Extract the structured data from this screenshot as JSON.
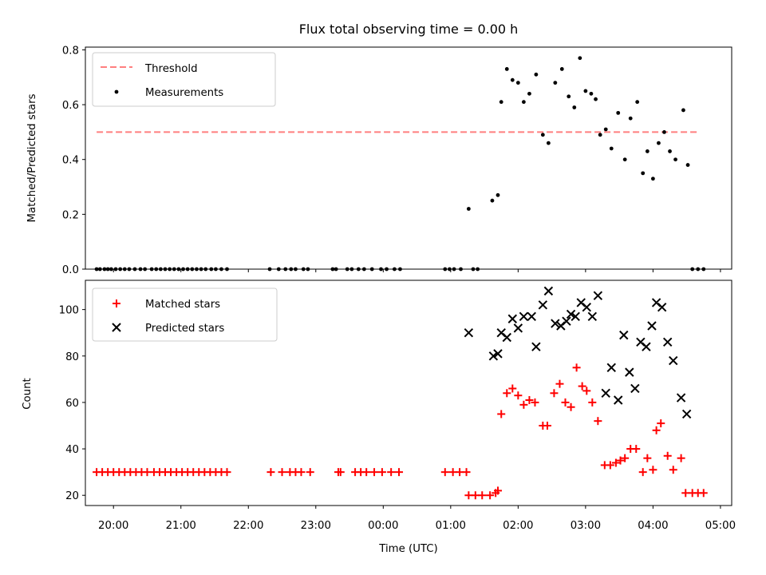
{
  "chart_data": [
    {
      "type": "scatter",
      "title": "Flux total observing time = 0.00 h",
      "ylabel": "Matched/Predicted stars",
      "xlabel": "",
      "xlim": [
        "19:35",
        "05:10"
      ],
      "ylim": [
        0,
        0.81
      ],
      "yticks": [
        0.0,
        0.2,
        0.4,
        0.6,
        0.8
      ],
      "ytick_labels": [
        "0.0",
        "0.2",
        "0.4",
        "0.6",
        "0.8"
      ],
      "xticks": [
        "20:00",
        "21:00",
        "22:00",
        "23:00",
        "00:00",
        "01:00",
        "02:00",
        "03:00",
        "04:00",
        "05:00"
      ],
      "x_unit": "time of day (UTC), continuous across midnight",
      "grid": false,
      "legend_position": "upper-left",
      "legend": [
        "Threshold",
        "Measurements"
      ],
      "threshold": {
        "name": "Threshold",
        "y": 0.5,
        "x_range": [
          "19:45",
          "04:40"
        ],
        "color": "#ff7f7f",
        "style": "dashed"
      },
      "series": [
        {
          "name": "Measurements",
          "color": "#000000",
          "marker": "dot",
          "points": [
            [
              "19:45",
              0
            ],
            [
              "19:48",
              0
            ],
            [
              "19:52",
              0
            ],
            [
              "19:55",
              0
            ],
            [
              "19:58",
              0
            ],
            [
              "20:02",
              0
            ],
            [
              "20:06",
              0
            ],
            [
              "20:10",
              0
            ],
            [
              "20:14",
              0
            ],
            [
              "20:19",
              0
            ],
            [
              "20:24",
              0
            ],
            [
              "20:28",
              0
            ],
            [
              "20:34",
              0
            ],
            [
              "20:38",
              0
            ],
            [
              "20:42",
              0
            ],
            [
              "20:46",
              0
            ],
            [
              "20:50",
              0
            ],
            [
              "20:54",
              0
            ],
            [
              "20:58",
              0
            ],
            [
              "21:02",
              0
            ],
            [
              "21:06",
              0
            ],
            [
              "21:10",
              0
            ],
            [
              "21:14",
              0
            ],
            [
              "21:18",
              0
            ],
            [
              "21:22",
              0
            ],
            [
              "21:27",
              0
            ],
            [
              "21:31",
              0
            ],
            [
              "21:36",
              0
            ],
            [
              "21:41",
              0
            ],
            [
              "22:19",
              0
            ],
            [
              "22:27",
              0
            ],
            [
              "22:33",
              0
            ],
            [
              "22:38",
              0
            ],
            [
              "22:42",
              0
            ],
            [
              "22:49",
              0
            ],
            [
              "22:53",
              0
            ],
            [
              "23:15",
              0
            ],
            [
              "23:18",
              0
            ],
            [
              "23:28",
              0
            ],
            [
              "23:32",
              0
            ],
            [
              "23:38",
              0
            ],
            [
              "23:43",
              0
            ],
            [
              "23:50",
              0
            ],
            [
              "23:58",
              0
            ],
            [
              "00:03",
              0
            ],
            [
              "00:10",
              0
            ],
            [
              "00:15",
              0
            ],
            [
              "00:55",
              0
            ],
            [
              "00:59",
              0
            ],
            [
              "01:03",
              0
            ],
            [
              "01:09",
              0
            ],
            [
              "01:20",
              0
            ],
            [
              "01:24",
              0
            ],
            [
              "01:16",
              0.22
            ],
            [
              "01:37",
              0.25
            ],
            [
              "01:42",
              0.27
            ],
            [
              "01:45",
              0.61
            ],
            [
              "01:50",
              0.73
            ],
            [
              "01:55",
              0.69
            ],
            [
              "02:00",
              0.68
            ],
            [
              "02:05",
              0.61
            ],
            [
              "02:10",
              0.64
            ],
            [
              "02:16",
              0.71
            ],
            [
              "02:22",
              0.49
            ],
            [
              "02:27",
              0.46
            ],
            [
              "02:33",
              0.68
            ],
            [
              "02:39",
              0.73
            ],
            [
              "02:45",
              0.63
            ],
            [
              "02:50",
              0.59
            ],
            [
              "02:55",
              0.77
            ],
            [
              "03:00",
              0.65
            ],
            [
              "03:05",
              0.64
            ],
            [
              "03:09",
              0.62
            ],
            [
              "03:13",
              0.49
            ],
            [
              "03:18",
              0.51
            ],
            [
              "03:23",
              0.44
            ],
            [
              "03:29",
              0.57
            ],
            [
              "03:35",
              0.4
            ],
            [
              "03:40",
              0.55
            ],
            [
              "03:46",
              0.61
            ],
            [
              "03:51",
              0.35
            ],
            [
              "03:55",
              0.43
            ],
            [
              "04:00",
              0.33
            ],
            [
              "04:05",
              0.46
            ],
            [
              "04:10",
              0.5
            ],
            [
              "04:15",
              0.43
            ],
            [
              "04:20",
              0.4
            ],
            [
              "04:27",
              0.58
            ],
            [
              "04:31",
              0.38
            ],
            [
              "04:35",
              0
            ],
            [
              "04:40",
              0
            ],
            [
              "04:45",
              0
            ]
          ]
        }
      ]
    },
    {
      "type": "scatter",
      "title": "",
      "ylabel": "Count",
      "xlabel": "Time (UTC)",
      "xlim": [
        "19:35",
        "05:10"
      ],
      "ylim": [
        15.6,
        112.6
      ],
      "yticks": [
        20,
        40,
        60,
        80,
        100
      ],
      "ytick_labels": [
        "20",
        "40",
        "60",
        "80",
        "100"
      ],
      "xticks": [
        "20:00",
        "21:00",
        "22:00",
        "23:00",
        "00:00",
        "01:00",
        "02:00",
        "03:00",
        "04:00",
        "05:00"
      ],
      "xtick_labels": [
        "20:00",
        "21:00",
        "22:00",
        "23:00",
        "00:00",
        "01:00",
        "02:00",
        "03:00",
        "04:00",
        "05:00"
      ],
      "grid": false,
      "legend_position": "upper-left",
      "legend": [
        "Matched stars",
        "Predicted stars"
      ],
      "series": [
        {
          "name": "Matched stars",
          "color": "#ff0000",
          "marker": "plus",
          "points": [
            [
              "19:45",
              30
            ],
            [
              "19:50",
              30
            ],
            [
              "19:55",
              30
            ],
            [
              "20:00",
              30
            ],
            [
              "20:05",
              30
            ],
            [
              "20:10",
              30
            ],
            [
              "20:15",
              30
            ],
            [
              "20:20",
              30
            ],
            [
              "20:25",
              30
            ],
            [
              "20:30",
              30
            ],
            [
              "20:36",
              30
            ],
            [
              "20:41",
              30
            ],
            [
              "20:46",
              30
            ],
            [
              "20:51",
              30
            ],
            [
              "20:56",
              30
            ],
            [
              "21:01",
              30
            ],
            [
              "21:06",
              30
            ],
            [
              "21:11",
              30
            ],
            [
              "21:16",
              30
            ],
            [
              "21:21",
              30
            ],
            [
              "21:26",
              30
            ],
            [
              "21:31",
              30
            ],
            [
              "21:36",
              30
            ],
            [
              "21:41",
              30
            ],
            [
              "22:20",
              30
            ],
            [
              "22:30",
              30
            ],
            [
              "22:37",
              30
            ],
            [
              "22:42",
              30
            ],
            [
              "22:47",
              30
            ],
            [
              "22:55",
              30
            ],
            [
              "23:20",
              30
            ],
            [
              "23:22",
              30
            ],
            [
              "23:35",
              30
            ],
            [
              "23:40",
              30
            ],
            [
              "23:45",
              30
            ],
            [
              "23:52",
              30
            ],
            [
              "23:59",
              30
            ],
            [
              "00:07",
              30
            ],
            [
              "00:14",
              30
            ],
            [
              "00:55",
              30
            ],
            [
              "01:02",
              30
            ],
            [
              "01:08",
              30
            ],
            [
              "01:14",
              30
            ],
            [
              "01:16",
              20
            ],
            [
              "01:22",
              20
            ],
            [
              "01:28",
              20
            ],
            [
              "01:35",
              20
            ],
            [
              "01:40",
              21
            ],
            [
              "01:42",
              22
            ],
            [
              "01:45",
              55
            ],
            [
              "01:50",
              64
            ],
            [
              "01:55",
              66
            ],
            [
              "02:00",
              63
            ],
            [
              "02:05",
              59
            ],
            [
              "02:10",
              61
            ],
            [
              "02:15",
              60
            ],
            [
              "02:22",
              50
            ],
            [
              "02:26",
              50
            ],
            [
              "02:32",
              64
            ],
            [
              "02:37",
              68
            ],
            [
              "02:42",
              60
            ],
            [
              "02:47",
              58
            ],
            [
              "02:52",
              75
            ],
            [
              "02:57",
              67
            ],
            [
              "03:01",
              65
            ],
            [
              "03:06",
              60
            ],
            [
              "03:11",
              52
            ],
            [
              "03:17",
              33
            ],
            [
              "03:22",
              33
            ],
            [
              "03:27",
              34
            ],
            [
              "03:31",
              35
            ],
            [
              "03:35",
              36
            ],
            [
              "03:40",
              40
            ],
            [
              "03:45",
              40
            ],
            [
              "03:51",
              30
            ],
            [
              "03:55",
              36
            ],
            [
              "04:00",
              31
            ],
            [
              "04:03",
              48
            ],
            [
              "04:07",
              51
            ],
            [
              "04:13",
              37
            ],
            [
              "04:18",
              31
            ],
            [
              "04:25",
              36
            ],
            [
              "04:29",
              21
            ],
            [
              "04:35",
              21
            ],
            [
              "04:40",
              21
            ],
            [
              "04:45",
              21
            ]
          ]
        },
        {
          "name": "Predicted stars",
          "color": "#000000",
          "marker": "x",
          "points": [
            [
              "01:16",
              90
            ],
            [
              "01:38",
              80
            ],
            [
              "01:42",
              81
            ],
            [
              "01:45",
              90
            ],
            [
              "01:50",
              88
            ],
            [
              "01:55",
              96
            ],
            [
              "02:00",
              92
            ],
            [
              "02:05",
              97
            ],
            [
              "02:12",
              97
            ],
            [
              "02:16",
              84
            ],
            [
              "02:22",
              102
            ],
            [
              "02:27",
              108
            ],
            [
              "02:33",
              94
            ],
            [
              "02:38",
              93
            ],
            [
              "02:43",
              95
            ],
            [
              "02:47",
              98
            ],
            [
              "02:51",
              97
            ],
            [
              "02:56",
              103
            ],
            [
              "03:01",
              101
            ],
            [
              "03:06",
              97
            ],
            [
              "03:11",
              106
            ],
            [
              "03:18",
              64
            ],
            [
              "03:23",
              75
            ],
            [
              "03:29",
              61
            ],
            [
              "03:34",
              89
            ],
            [
              "03:39",
              73
            ],
            [
              "03:44",
              66
            ],
            [
              "03:49",
              86
            ],
            [
              "03:54",
              84
            ],
            [
              "03:59",
              93
            ],
            [
              "04:03",
              103
            ],
            [
              "04:08",
              101
            ],
            [
              "04:13",
              86
            ],
            [
              "04:18",
              78
            ],
            [
              "04:25",
              62
            ],
            [
              "04:30",
              55
            ]
          ]
        }
      ]
    }
  ]
}
